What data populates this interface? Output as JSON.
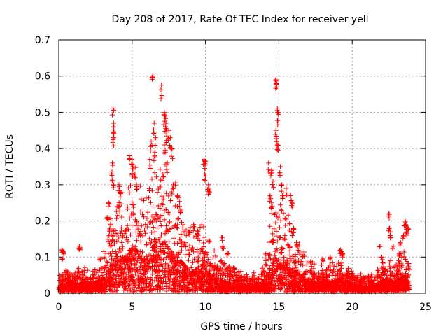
{
  "chart_data": {
    "type": "scatter",
    "title": "Day 208 of 2017, Rate Of TEC Index for receiver yell",
    "xlabel": "GPS time / hours",
    "ylabel": "ROTI / TECUs",
    "xlim": [
      0,
      25
    ],
    "ylim": [
      0,
      0.7
    ],
    "x_ticks": [
      0,
      5,
      10,
      15,
      20,
      25
    ],
    "y_ticks": [
      0,
      0.1,
      0.2,
      0.3,
      0.4,
      0.5,
      0.6,
      0.7
    ],
    "x_tick_labels": [
      "0",
      "5",
      "10",
      "15",
      "20",
      "25"
    ],
    "y_tick_labels": [
      "0",
      "0.1",
      "0.2",
      "0.3",
      "0.4",
      "0.5",
      "0.6",
      "0.7"
    ],
    "grid": true,
    "marker": "plus",
    "marker_color": "#ff0000",
    "x_range_of_data": [
      0,
      23.9
    ],
    "envelope": [
      [
        0.0,
        0.03
      ],
      [
        0.5,
        0.04
      ],
      [
        1.0,
        0.035
      ],
      [
        1.5,
        0.05
      ],
      [
        2.0,
        0.04
      ],
      [
        2.5,
        0.05
      ],
      [
        3.0,
        0.07
      ],
      [
        3.3,
        0.1
      ],
      [
        3.6,
        0.14
      ],
      [
        3.8,
        0.18
      ],
      [
        4.0,
        0.16
      ],
      [
        4.3,
        0.19
      ],
      [
        4.6,
        0.17
      ],
      [
        4.9,
        0.22
      ],
      [
        5.1,
        0.25
      ],
      [
        5.4,
        0.2
      ],
      [
        5.8,
        0.17
      ],
      [
        6.2,
        0.19
      ],
      [
        6.5,
        0.24
      ],
      [
        6.8,
        0.21
      ],
      [
        7.1,
        0.26
      ],
      [
        7.5,
        0.22
      ],
      [
        7.9,
        0.2
      ],
      [
        8.3,
        0.16
      ],
      [
        8.8,
        0.12
      ],
      [
        9.2,
        0.11
      ],
      [
        9.6,
        0.13
      ],
      [
        10.0,
        0.12
      ],
      [
        10.4,
        0.08
      ],
      [
        11.0,
        0.06
      ],
      [
        11.5,
        0.05
      ],
      [
        12.0,
        0.045
      ],
      [
        12.5,
        0.04
      ],
      [
        13.0,
        0.035
      ],
      [
        13.5,
        0.04
      ],
      [
        14.0,
        0.06
      ],
      [
        14.4,
        0.12
      ],
      [
        14.8,
        0.18
      ],
      [
        15.2,
        0.16
      ],
      [
        15.6,
        0.14
      ],
      [
        16.0,
        0.11
      ],
      [
        16.5,
        0.08
      ],
      [
        17.0,
        0.06
      ],
      [
        17.5,
        0.05
      ],
      [
        18.0,
        0.05
      ],
      [
        18.5,
        0.05
      ],
      [
        19.0,
        0.06
      ],
      [
        19.3,
        0.08
      ],
      [
        19.6,
        0.05
      ],
      [
        20.0,
        0.04
      ],
      [
        20.5,
        0.035
      ],
      [
        21.0,
        0.03
      ],
      [
        21.5,
        0.035
      ],
      [
        22.0,
        0.05
      ],
      [
        22.4,
        0.07
      ],
      [
        22.8,
        0.05
      ],
      [
        23.2,
        0.06
      ],
      [
        23.5,
        0.08
      ],
      [
        23.9,
        0.05
      ]
    ],
    "outliers": [
      [
        0.2,
        0.12
      ],
      [
        0.3,
        0.115
      ],
      [
        0.25,
        0.095
      ],
      [
        1.4,
        0.13
      ],
      [
        1.45,
        0.125
      ],
      [
        3.7,
        0.51
      ],
      [
        3.75,
        0.47
      ],
      [
        3.7,
        0.43
      ],
      [
        3.75,
        0.46
      ],
      [
        3.65,
        0.36
      ],
      [
        3.6,
        0.33
      ],
      [
        3.7,
        0.3
      ],
      [
        4.1,
        0.3
      ],
      [
        4.2,
        0.28
      ],
      [
        3.35,
        0.21
      ],
      [
        3.4,
        0.25
      ],
      [
        4.8,
        0.38
      ],
      [
        5.0,
        0.37
      ],
      [
        5.05,
        0.35
      ],
      [
        5.2,
        0.33
      ],
      [
        5.3,
        0.3
      ],
      [
        6.3,
        0.42
      ],
      [
        6.4,
        0.6
      ],
      [
        6.5,
        0.47
      ],
      [
        6.6,
        0.43
      ],
      [
        6.55,
        0.39
      ],
      [
        6.2,
        0.37
      ],
      [
        7.0,
        0.575
      ],
      [
        7.2,
        0.5
      ],
      [
        7.25,
        0.49
      ],
      [
        7.3,
        0.47
      ],
      [
        7.35,
        0.44
      ],
      [
        7.2,
        0.41
      ],
      [
        7.5,
        0.45
      ],
      [
        7.6,
        0.43
      ],
      [
        7.7,
        0.4
      ],
      [
        7.4,
        0.36
      ],
      [
        7.1,
        0.33
      ],
      [
        7.8,
        0.3
      ],
      [
        8.1,
        0.27
      ],
      [
        8.3,
        0.23
      ],
      [
        8.9,
        0.17
      ],
      [
        9.2,
        0.19
      ],
      [
        9.5,
        0.17
      ],
      [
        9.9,
        0.37
      ],
      [
        10.0,
        0.365
      ],
      [
        9.95,
        0.33
      ],
      [
        10.2,
        0.3
      ],
      [
        10.25,
        0.29
      ],
      [
        11.1,
        0.155
      ],
      [
        11.2,
        0.13
      ],
      [
        11.5,
        0.11
      ],
      [
        14.3,
        0.36
      ],
      [
        14.5,
        0.34
      ],
      [
        14.6,
        0.31
      ],
      [
        14.4,
        0.27
      ],
      [
        14.5,
        0.25
      ],
      [
        14.8,
        0.59
      ],
      [
        14.85,
        0.58
      ],
      [
        14.9,
        0.51
      ],
      [
        14.95,
        0.5
      ],
      [
        14.8,
        0.45
      ],
      [
        14.85,
        0.42
      ],
      [
        14.9,
        0.41
      ],
      [
        15.1,
        0.35
      ],
      [
        15.2,
        0.3
      ],
      [
        15.3,
        0.27
      ],
      [
        15.5,
        0.29
      ],
      [
        15.8,
        0.27
      ],
      [
        15.9,
        0.25
      ],
      [
        16.0,
        0.18
      ],
      [
        16.2,
        0.14
      ],
      [
        18.0,
        0.095
      ],
      [
        18.5,
        0.1
      ],
      [
        19.2,
        0.12
      ],
      [
        19.35,
        0.11
      ],
      [
        21.9,
        0.13
      ],
      [
        22.0,
        0.1
      ],
      [
        22.5,
        0.22
      ],
      [
        22.55,
        0.18
      ],
      [
        22.6,
        0.16
      ],
      [
        22.8,
        0.13
      ],
      [
        23.2,
        0.11
      ],
      [
        23.6,
        0.2
      ],
      [
        23.65,
        0.19
      ],
      [
        23.7,
        0.17
      ],
      [
        23.5,
        0.16
      ],
      [
        23.3,
        0.14
      ],
      [
        23.8,
        0.18
      ]
    ]
  }
}
